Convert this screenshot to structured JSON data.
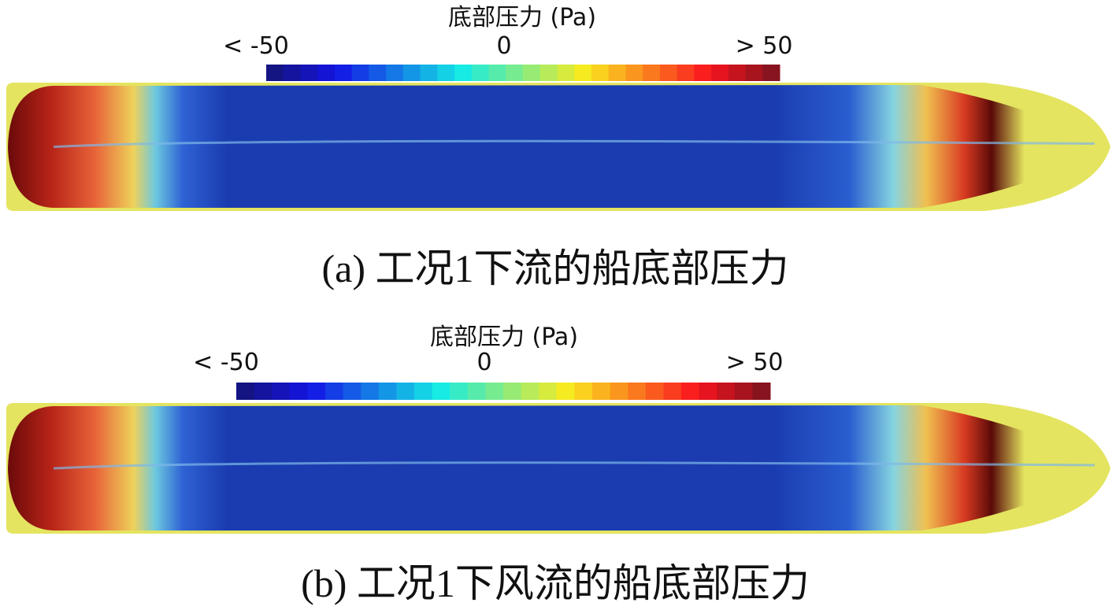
{
  "panels": [
    {
      "colorbar": {
        "title": "底部压力 (Pa)",
        "min_label": "< -50",
        "mid_label": "0",
        "max_label": "> 50"
      },
      "caption": "(a) 工况1下流的船底部压力"
    },
    {
      "colorbar": {
        "title": "底部压力 (Pa)",
        "min_label": "< -50",
        "mid_label": "0",
        "max_label": "> 50"
      },
      "caption": "(b) 工况1下风流的船底部压力"
    }
  ]
}
